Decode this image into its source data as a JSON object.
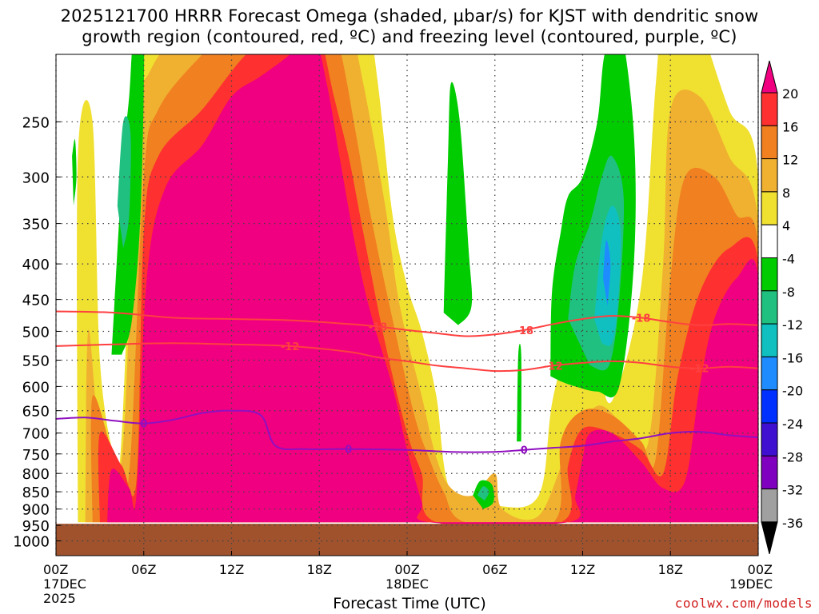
{
  "title": {
    "line1": "2025121700 HRRR Forecast Omega (shaded, µbar/s) for KJST with dendritic snow",
    "line2": "growth region (contoured, red, ºC) and freezing level (contoured, purple, ºC)"
  },
  "credit": "coolwx.com/models",
  "chart_data": {
    "type": "heatmap",
    "xlabel": "Forecast Time (UTC)",
    "ylabel": "",
    "x_ticks": [
      {
        "hour": 0,
        "label": "00Z",
        "sub1": "17DEC",
        "sub2": "2025"
      },
      {
        "hour": 6,
        "label": "06Z",
        "sub1": "",
        "sub2": ""
      },
      {
        "hour": 12,
        "label": "12Z",
        "sub1": "",
        "sub2": ""
      },
      {
        "hour": 18,
        "label": "18Z",
        "sub1": "",
        "sub2": ""
      },
      {
        "hour": 24,
        "label": "00Z",
        "sub1": "18DEC",
        "sub2": ""
      },
      {
        "hour": 30,
        "label": "06Z",
        "sub1": "",
        "sub2": ""
      },
      {
        "hour": 36,
        "label": "12Z",
        "sub1": "",
        "sub2": ""
      },
      {
        "hour": 42,
        "label": "18Z",
        "sub1": "",
        "sub2": ""
      },
      {
        "hour": 48,
        "label": "00Z",
        "sub1": "19DEC",
        "sub2": ""
      }
    ],
    "xlim": [
      0,
      48
    ],
    "y_ticks": [
      250,
      300,
      350,
      400,
      450,
      500,
      550,
      600,
      650,
      700,
      750,
      800,
      850,
      900,
      950,
      1000
    ],
    "ylim_hPa": [
      200,
      1050
    ],
    "y_scale": "log",
    "grid": true,
    "colorbar": {
      "labels": [
        "20",
        "16",
        "12",
        "8",
        "4",
        "-4",
        "-8",
        "-12",
        "-16",
        "-20",
        "-24",
        "-28",
        "-32",
        "-36"
      ],
      "colors": [
        "#f00080",
        "#ff3030",
        "#f08020",
        "#f0b030",
        "#f0e030",
        "#ffffff",
        "#00cc00",
        "#20c080",
        "#10c0c0",
        "#1e8cff",
        "#0030ff",
        "#4010d0",
        "#8000c0",
        "#a0a0a0",
        "#000000"
      ]
    },
    "terrain_color": "#a0522d",
    "terrain_top_hPa": 945,
    "dgz_contours": {
      "color": "#ff4040",
      "labels": [
        "-18",
        "-12"
      ],
      "minus18": [
        [
          0,
          468
        ],
        [
          4,
          470
        ],
        [
          8,
          478
        ],
        [
          12,
          480
        ],
        [
          16,
          482
        ],
        [
          20,
          488
        ],
        [
          22,
          492
        ],
        [
          24,
          498
        ],
        [
          26,
          503
        ],
        [
          28,
          508
        ],
        [
          30,
          505
        ],
        [
          32,
          498
        ],
        [
          34,
          488
        ],
        [
          36,
          480
        ],
        [
          38,
          475
        ],
        [
          40,
          478
        ],
        [
          42,
          485
        ],
        [
          44,
          490
        ],
        [
          46,
          488
        ],
        [
          48,
          490
        ]
      ],
      "minus12": [
        [
          0,
          525
        ],
        [
          4,
          522
        ],
        [
          8,
          520
        ],
        [
          12,
          522
        ],
        [
          16,
          525
        ],
        [
          20,
          535
        ],
        [
          22,
          545
        ],
        [
          24,
          552
        ],
        [
          26,
          560
        ],
        [
          28,
          565
        ],
        [
          30,
          570
        ],
        [
          32,
          568
        ],
        [
          34,
          560
        ],
        [
          36,
          555
        ],
        [
          38,
          552
        ],
        [
          40,
          555
        ],
        [
          42,
          562
        ],
        [
          44,
          565
        ],
        [
          46,
          562
        ],
        [
          48,
          565
        ]
      ]
    },
    "freezing_level": {
      "color": "#9010c0",
      "label": "0",
      "points": [
        [
          0,
          668
        ],
        [
          2,
          665
        ],
        [
          4,
          672
        ],
        [
          6,
          678
        ],
        [
          8,
          670
        ],
        [
          10,
          655
        ],
        [
          12,
          650
        ],
        [
          14,
          660
        ],
        [
          15,
          730
        ],
        [
          17,
          738
        ],
        [
          20,
          738
        ],
        [
          24,
          740
        ],
        [
          27,
          745
        ],
        [
          30,
          745
        ],
        [
          32,
          740
        ],
        [
          34,
          735
        ],
        [
          36,
          730
        ],
        [
          38,
          720
        ],
        [
          40,
          712
        ],
        [
          42,
          700
        ],
        [
          44,
          697
        ],
        [
          46,
          705
        ],
        [
          48,
          710
        ]
      ]
    },
    "shaded_regions": [
      {
        "color": "#f0e030",
        "points": [
          [
            1.5,
            940
          ],
          [
            1.5,
            280
          ],
          [
            2.5,
            250
          ],
          [
            3,
            550
          ],
          [
            4,
            760
          ],
          [
            4.5,
            700
          ],
          [
            5.5,
            220
          ],
          [
            6,
            180
          ],
          [
            7,
            160
          ],
          [
            10,
            140
          ],
          [
            13,
            120
          ],
          [
            16,
            105
          ],
          [
            18,
            105
          ],
          [
            19,
            120
          ],
          [
            21,
            160
          ],
          [
            22,
            220
          ],
          [
            23,
            340
          ],
          [
            24,
            430
          ],
          [
            25,
            500
          ],
          [
            26,
            620
          ],
          [
            27,
            850
          ],
          [
            30,
            890
          ],
          [
            33,
            860
          ],
          [
            34,
            620
          ],
          [
            36,
            450
          ],
          [
            37,
            540
          ],
          [
            38,
            630
          ],
          [
            40,
            430
          ],
          [
            41,
            220
          ],
          [
            42,
            140
          ],
          [
            44,
            180
          ],
          [
            46,
            240
          ],
          [
            48,
            300
          ],
          [
            48,
            940
          ]
        ]
      },
      {
        "color": "#f0b030",
        "points": [
          [
            2,
            940
          ],
          [
            2.2,
            500
          ],
          [
            3,
            700
          ],
          [
            4.5,
            760
          ],
          [
            5.5,
            260
          ],
          [
            6.5,
            210
          ],
          [
            9,
            180
          ],
          [
            12,
            160
          ],
          [
            15,
            140
          ],
          [
            17.5,
            130
          ],
          [
            19.5,
            160
          ],
          [
            21,
            220
          ],
          [
            22.5,
            330
          ],
          [
            23.5,
            460
          ],
          [
            25,
            620
          ],
          [
            26,
            760
          ],
          [
            27,
            840
          ],
          [
            28.5,
            860
          ],
          [
            30,
            800
          ],
          [
            30.5,
            900
          ],
          [
            33,
            920
          ],
          [
            35,
            740
          ],
          [
            37,
            640
          ],
          [
            39,
            690
          ],
          [
            40.5,
            720
          ],
          [
            41.5,
            400
          ],
          [
            42,
            240
          ],
          [
            44,
            230
          ],
          [
            46,
            280
          ],
          [
            48,
            350
          ],
          [
            48,
            940
          ]
        ]
      },
      {
        "color": "#f08020",
        "points": [
          [
            2.5,
            940
          ],
          [
            2.5,
            620
          ],
          [
            4,
            760
          ],
          [
            5,
            800
          ],
          [
            6,
            300
          ],
          [
            7,
            240
          ],
          [
            10,
            200
          ],
          [
            13,
            175
          ],
          [
            16,
            160
          ],
          [
            18,
            150
          ],
          [
            19.5,
            200
          ],
          [
            20.5,
            260
          ],
          [
            21.5,
            340
          ],
          [
            23,
            480
          ],
          [
            24.5,
            660
          ],
          [
            25.5,
            760
          ],
          [
            26.5,
            850
          ],
          [
            28,
            940
          ],
          [
            34,
            940
          ],
          [
            34.5,
            720
          ],
          [
            36,
            650
          ],
          [
            38,
            660
          ],
          [
            40,
            720
          ],
          [
            41,
            760
          ],
          [
            42,
            420
          ],
          [
            43,
            300
          ],
          [
            45,
            300
          ],
          [
            46.5,
            340
          ],
          [
            48,
            380
          ],
          [
            48,
            940
          ]
        ]
      },
      {
        "color": "#ff3030",
        "points": [
          [
            3,
            940
          ],
          [
            3,
            700
          ],
          [
            4.5,
            780
          ],
          [
            5.5,
            820
          ],
          [
            6,
            360
          ],
          [
            7,
            280
          ],
          [
            10,
            240
          ],
          [
            13,
            200
          ],
          [
            16,
            180
          ],
          [
            17.5,
            170
          ],
          [
            19,
            230
          ],
          [
            20,
            280
          ],
          [
            21,
            360
          ],
          [
            22.5,
            520
          ],
          [
            24,
            700
          ],
          [
            25,
            800
          ],
          [
            26,
            940
          ],
          [
            34.5,
            940
          ],
          [
            35,
            780
          ],
          [
            36,
            690
          ],
          [
            38,
            700
          ],
          [
            40,
            740
          ],
          [
            41.5,
            800
          ],
          [
            42.5,
            580
          ],
          [
            44,
            440
          ],
          [
            46,
            380
          ],
          [
            48,
            400
          ],
          [
            48,
            940
          ]
        ]
      },
      {
        "color": "#f00080",
        "points": [
          [
            3.5,
            940
          ],
          [
            3.8,
            790
          ],
          [
            5,
            840
          ],
          [
            5.5,
            860
          ],
          [
            6.2,
            420
          ],
          [
            7.5,
            310
          ],
          [
            10,
            270
          ],
          [
            12,
            230
          ],
          [
            14,
            215
          ],
          [
            16,
            200
          ],
          [
            17.5,
            185
          ],
          [
            18.5,
            220
          ],
          [
            19.5,
            290
          ],
          [
            20.5,
            380
          ],
          [
            21.5,
            470
          ],
          [
            23,
            600
          ],
          [
            24,
            740
          ],
          [
            25,
            880
          ],
          [
            25.5,
            940
          ],
          [
            35,
            940
          ],
          [
            35.5,
            860
          ],
          [
            36,
            760
          ],
          [
            36.5,
            700
          ],
          [
            38,
            700
          ],
          [
            40,
            770
          ],
          [
            41.5,
            840
          ],
          [
            43,
            820
          ],
          [
            44,
            600
          ],
          [
            45,
            480
          ],
          [
            46.5,
            420
          ],
          [
            48,
            420
          ],
          [
            48,
            940
          ]
        ]
      },
      {
        "color": "#00cc00",
        "points": [
          [
            3.8,
            540
          ],
          [
            4.5,
            300
          ],
          [
            5,
            230
          ],
          [
            5.3,
            190
          ],
          [
            6,
            180
          ],
          [
            5.8,
            330
          ],
          [
            5.2,
            480
          ],
          [
            4.5,
            540
          ]
        ]
      },
      {
        "color": "#20c080",
        "points": [
          [
            4.2,
            330
          ],
          [
            4.6,
            250
          ],
          [
            5.1,
            260
          ],
          [
            5,
            340
          ],
          [
            4.6,
            380
          ]
        ]
      },
      {
        "color": "#00cc00",
        "points": [
          [
            1.1,
            280
          ],
          [
            1.3,
            265
          ],
          [
            1.4,
            300
          ],
          [
            1.2,
            330
          ]
        ]
      },
      {
        "color": "#00cc00",
        "points": [
          [
            26.5,
            470
          ],
          [
            26.8,
            280
          ],
          [
            27,
            220
          ],
          [
            27.6,
            250
          ],
          [
            28.2,
            380
          ],
          [
            28.4,
            460
          ],
          [
            27.5,
            490
          ]
        ]
      },
      {
        "color": "#00cc00",
        "points": [
          [
            33.8,
            580
          ],
          [
            33.9,
            440
          ],
          [
            34.5,
            360
          ],
          [
            35,
            320
          ],
          [
            36,
            300
          ],
          [
            37,
            250
          ],
          [
            37.5,
            200
          ],
          [
            38.5,
            180
          ],
          [
            39.5,
            260
          ],
          [
            39.5,
            400
          ],
          [
            38.5,
            600
          ],
          [
            37,
            610
          ],
          [
            35.5,
            600
          ],
          [
            34.5,
            590
          ]
        ]
      },
      {
        "color": "#20c080",
        "points": [
          [
            35,
            480
          ],
          [
            35.5,
            400
          ],
          [
            36.5,
            350
          ],
          [
            37.3,
            300
          ],
          [
            38,
            280
          ],
          [
            38.8,
            320
          ],
          [
            38.5,
            450
          ],
          [
            37.8,
            560
          ],
          [
            36.5,
            560
          ]
        ]
      },
      {
        "color": "#10c0c0",
        "points": [
          [
            36.8,
            480
          ],
          [
            37.3,
            370
          ],
          [
            38,
            330
          ],
          [
            38.6,
            360
          ],
          [
            38.4,
            460
          ],
          [
            38,
            520
          ],
          [
            37.3,
            520
          ]
        ]
      },
      {
        "color": "#1e8cff",
        "points": [
          [
            37.4,
            420
          ],
          [
            37.6,
            370
          ],
          [
            37.9,
            400
          ],
          [
            37.7,
            460
          ]
        ]
      },
      {
        "color": "#00cc00",
        "points": [
          [
            31.5,
            720
          ],
          [
            31.6,
            540
          ],
          [
            31.8,
            540
          ],
          [
            31.8,
            720
          ]
        ]
      },
      {
        "color": "#00cc00",
        "points": [
          [
            28.5,
            860
          ],
          [
            29,
            820
          ],
          [
            29.8,
            830
          ],
          [
            29.9,
            880
          ],
          [
            29.2,
            900
          ]
        ]
      },
      {
        "color": "#20c080",
        "points": [
          [
            28.8,
            860
          ],
          [
            29.2,
            835
          ],
          [
            29.6,
            850
          ],
          [
            29.3,
            875
          ]
        ]
      }
    ]
  }
}
